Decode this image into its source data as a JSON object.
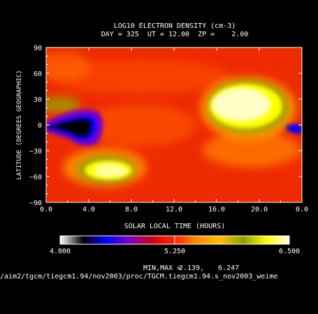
{
  "chart_data": {
    "type": "heatmap",
    "title": "LOG10 ELECTRON DENSITY (cm-3)",
    "subtitle": "DAY = 325  UT = 12.00  ZP =    2.00",
    "xlabel": "SOLAR LOCAL TIME (HOURS)",
    "ylabel": "LATITUDE (DEGREES GEOGRAPHIC)",
    "x_ticks": [
      "0.0",
      "4.0",
      "8.0",
      "12.0",
      "16.0",
      "20.0",
      "0.0"
    ],
    "y_ticks": [
      "90",
      "60",
      "30",
      "0",
      "−30",
      "−60",
      "−90"
    ],
    "xlim": [
      0,
      24
    ],
    "ylim": [
      -90,
      90
    ],
    "colorbar": {
      "ticks": [
        "4.000",
        "5.250",
        "6.500"
      ],
      "range": [
        4.0,
        6.5
      ],
      "colors": [
        "#ffffff",
        "#000000",
        "#0000ff",
        "#7a00c8",
        "#d2000a",
        "#ff2800",
        "#ff8c00",
        "#ffc000",
        "#8ca000",
        "#ffff00",
        "#ffffe6"
      ]
    },
    "minmax_label": "MIN,MAX =",
    "min_value": "2.139,",
    "max_value": "6.247",
    "features": [
      {
        "label": "density_high_afternoon",
        "slt": 18.0,
        "lat": 40,
        "value": 6.2
      },
      {
        "label": "density_high_southern",
        "slt": 6.5,
        "lat": -48,
        "value": 6.0
      },
      {
        "label": "density_low_night",
        "slt": 4.0,
        "lat": 0,
        "value": 4.0
      },
      {
        "label": "density_low_edge",
        "slt": 23.8,
        "lat": 0,
        "value": 4.5
      }
    ]
  },
  "file_path": "/aim2/tgcm/tiegcm1.94/nov2003/proc/TGCM.tiegcm1.94.s_nov2003_weime"
}
